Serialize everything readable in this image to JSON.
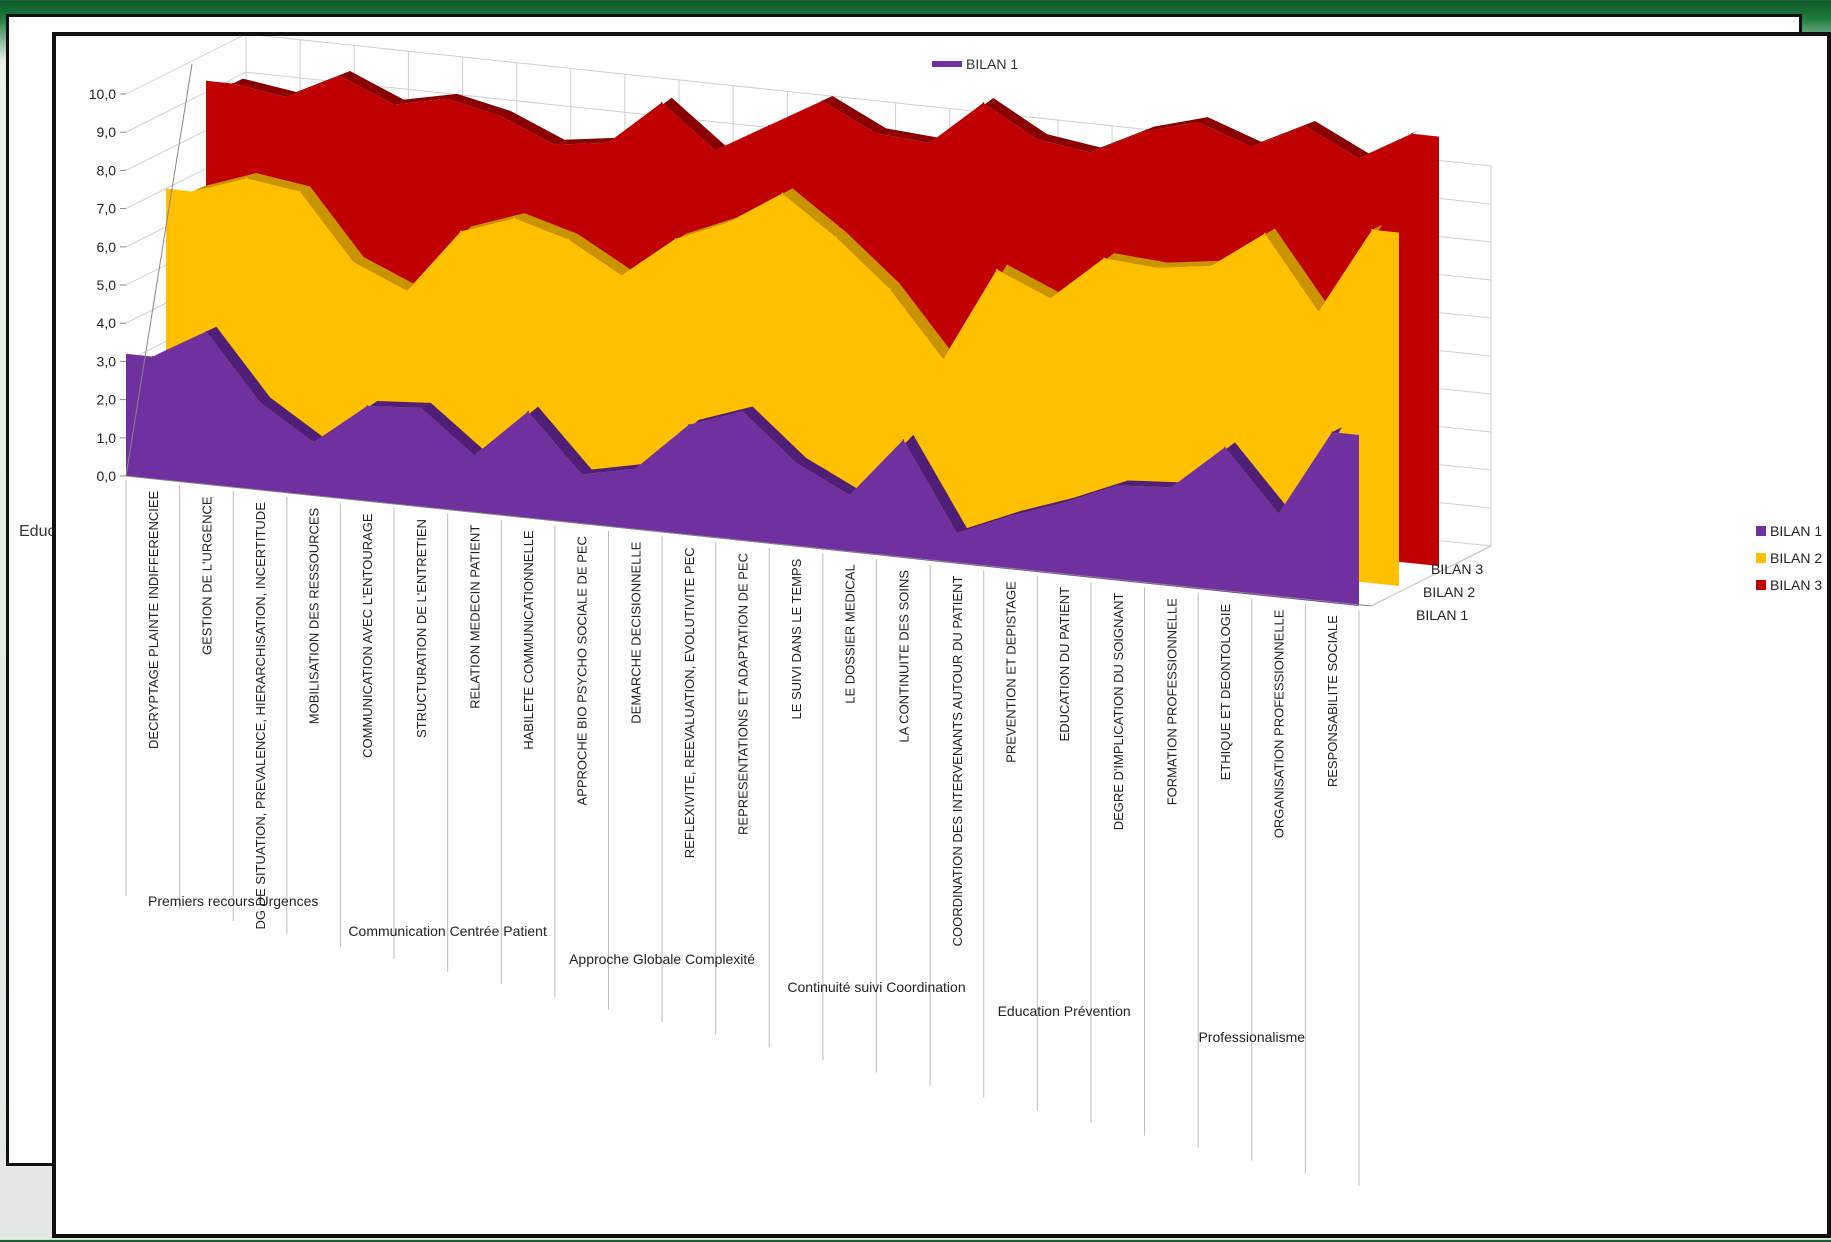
{
  "background_fragment": {
    "text": "Educ"
  },
  "chart_data": {
    "type": "area",
    "legend_position": "right",
    "grid": true,
    "ylim": [
      0,
      10
    ],
    "y_ticks": [
      "0,0",
      "1,0",
      "2,0",
      "3,0",
      "4,0",
      "5,0",
      "6,0",
      "7,0",
      "8,0",
      "9,0",
      "10,0"
    ],
    "categories": [
      "DECRYPTAGE PLAINTE INDIFFERENCIEE",
      "GESTION DE L'URGENCE",
      "DG DE SITUATION, PREVALENCE, HIERARCHISATION, INCERTITUDE",
      "MOBILISATION DES RESSOURCES",
      "COMMUNICATION AVEC L'ENTOURAGE",
      "STRUCTURATION DE L'ENTRETIEN",
      "RELATION MEDECIN PATIENT",
      "HABILETE COMMUNICATIONNELLE",
      "APPROCHE BIO PSYCHO SOCIALE DE PEC",
      "DEMARCHE DECISIONNELLE",
      "REFLEXIVITE, REEVALUATION, EVOLUTIVITE PEC",
      "REPRESENTATIONS ET ADAPTATION DE PEC",
      "LE SUIVI DANS LE TEMPS",
      "LE DOSSIER MEDICAL",
      "LA CONTINUITE DES SOINS",
      "COORDINATION DES INTERVENANTS AUTOUR DU PATIENT",
      "PREVENTION ET DEPISTAGE",
      "EDUCATION DU PATIENT",
      "DEGRE D'IMPLICATION DU SOIGNANT",
      "FORMATION PROFESSIONNELLE",
      "ETHIQUE ET DEONTOLOGIE",
      "ORGANISATION PROFESSIONNELLE",
      "RESPONSABILITE SOCIALE"
    ],
    "groups": [
      {
        "label": "Premiers recours Urgences",
        "start": 0,
        "end": 3
      },
      {
        "label": "Communication Centrée Patient",
        "start": 4,
        "end": 7
      },
      {
        "label": "Approche Globale Complexité",
        "start": 8,
        "end": 11
      },
      {
        "label": "Continuité suivi Coordination",
        "start": 12,
        "end": 15
      },
      {
        "label": "Education Prévention",
        "start": 16,
        "end": 18
      },
      {
        "label": "Professionalisme",
        "start": 19,
        "end": 22
      }
    ],
    "series": [
      {
        "name": "BILAN 1",
        "color": "#7030a0",
        "depth_label": "BILAN 1",
        "values": [
          3.2,
          4.0,
          2.3,
          1.4,
          2.5,
          2.6,
          1.5,
          2.8,
          1.3,
          1.6,
          2.9,
          3.4,
          2.2,
          1.5,
          3.1,
          0.8,
          1.4,
          1.9,
          2.5,
          2.6,
          3.8,
          2.2,
          4.5
        ]
      },
      {
        "name": "BILAN 2",
        "color": "#ffc000",
        "depth_label": "BILAN 2",
        "values": [
          7.0,
          7.5,
          7.3,
          5.6,
          5.0,
          6.7,
          7.2,
          6.8,
          6.0,
          7.1,
          7.7,
          8.6,
          7.6,
          6.4,
          4.7,
          7.2,
          6.6,
          7.8,
          7.7,
          7.9,
          8.9,
          7.0,
          9.3
        ]
      },
      {
        "name": "BILAN 3",
        "color": "#c00000",
        "depth_label": "BILAN 3",
        "values": [
          9.3,
          9.1,
          9.8,
          9.2,
          9.5,
          9.2,
          8.6,
          8.8,
          10.0,
          8.9,
          9.7,
          10.5,
          9.8,
          9.7,
          10.9,
          10.1,
          9.9,
          10.6,
          11.0,
          10.5,
          11.2,
          10.5,
          11.3
        ]
      }
    ]
  }
}
